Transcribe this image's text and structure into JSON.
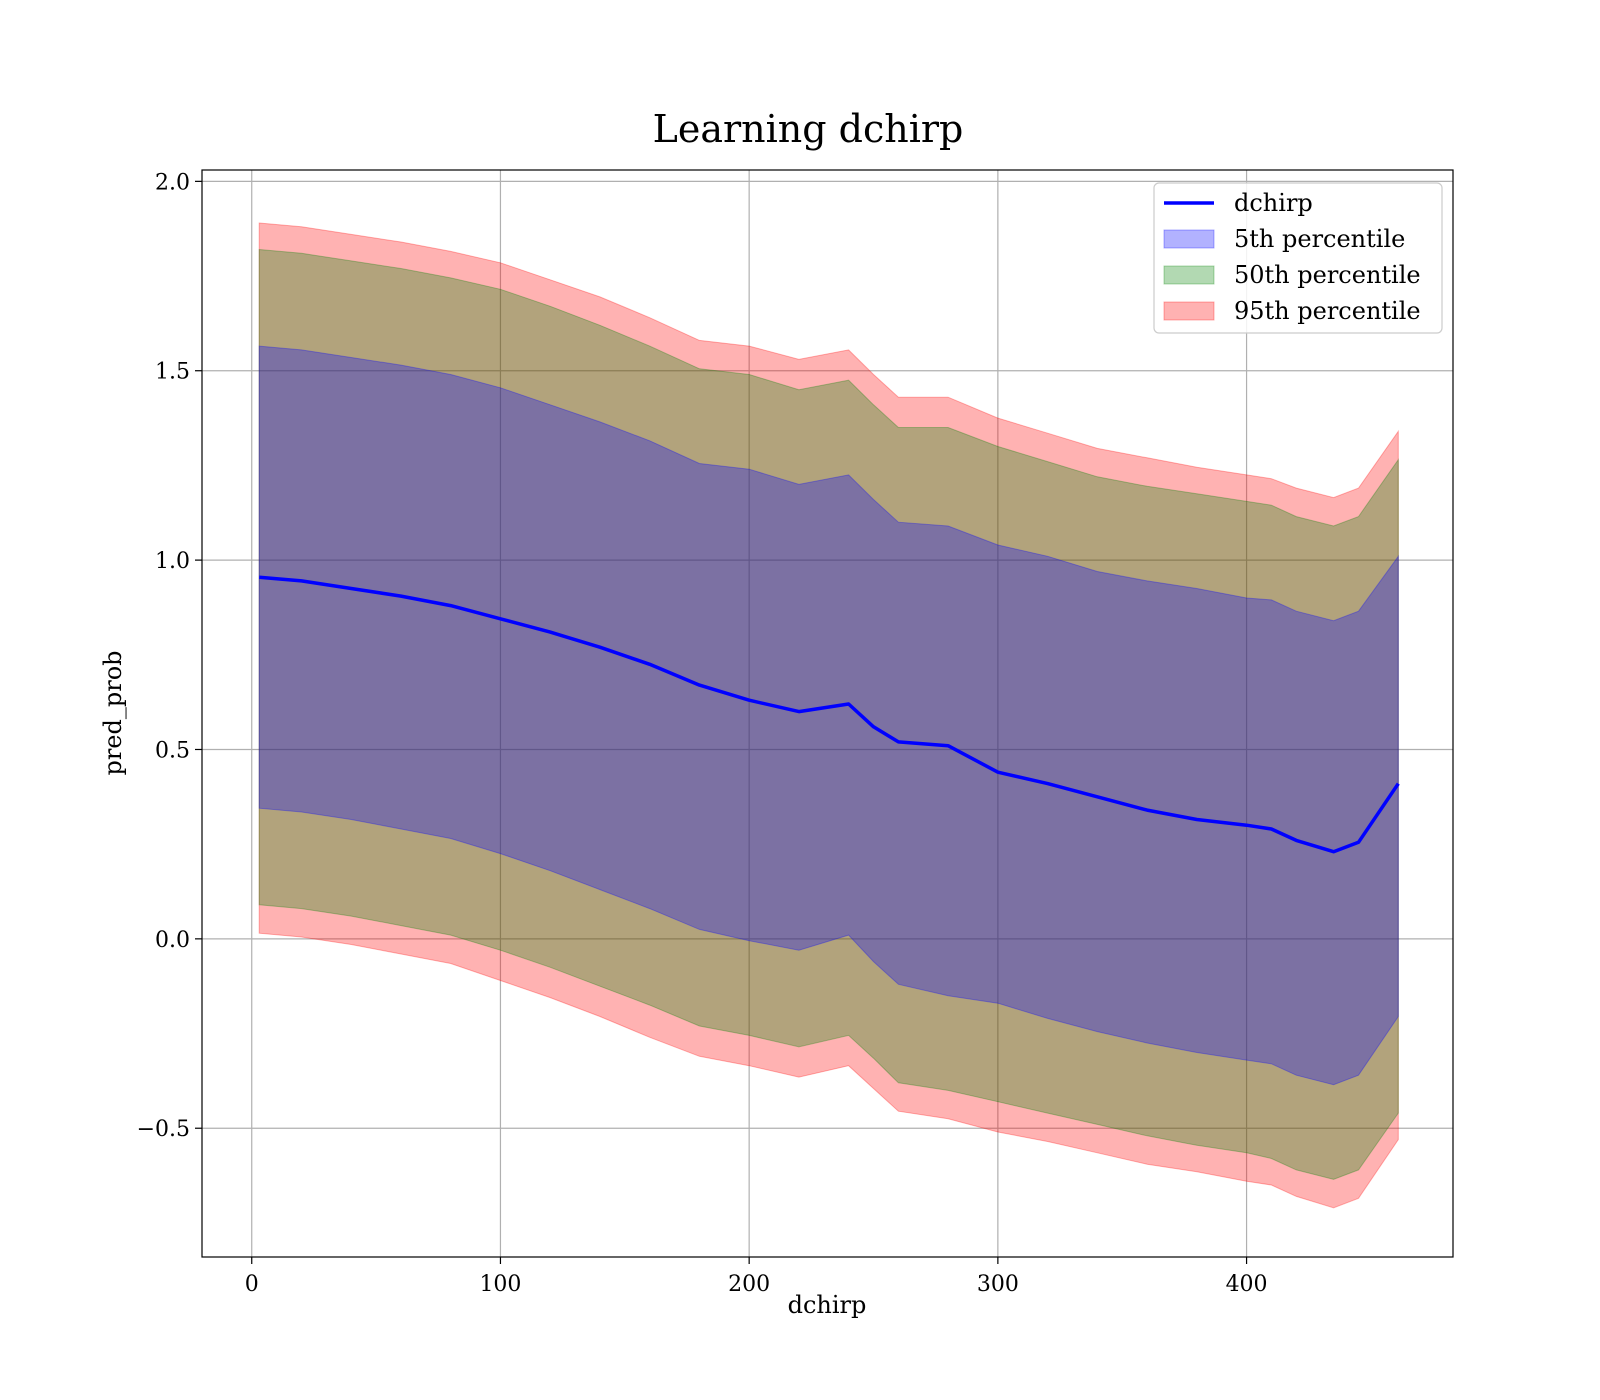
{
  "chart_data": {
    "type": "area",
    "title": "Learning dchirp",
    "xlabel": "dchirp",
    "ylabel": "pred_prob",
    "xlim": [
      -20,
      483
    ],
    "ylim": [
      -0.84,
      2.03
    ],
    "x_ticks": [
      {
        "value": 0,
        "label": "0"
      },
      {
        "value": 100,
        "label": "100"
      },
      {
        "value": 200,
        "label": "200"
      },
      {
        "value": 300,
        "label": "300"
      },
      {
        "value": 400,
        "label": "400"
      }
    ],
    "y_ticks": [
      {
        "value": -0.5,
        "label": "−0.5"
      },
      {
        "value": 0.0,
        "label": "0.0"
      },
      {
        "value": 0.5,
        "label": "0.5"
      },
      {
        "value": 1.0,
        "label": "1.0"
      },
      {
        "value": 1.5,
        "label": "1.5"
      },
      {
        "value": 2.0,
        "label": "2.0"
      }
    ],
    "grid": true,
    "legend_position": "top-right",
    "x": [
      3,
      20,
      40,
      60,
      80,
      100,
      120,
      140,
      160,
      180,
      200,
      220,
      240,
      250,
      260,
      280,
      300,
      320,
      340,
      360,
      380,
      400,
      410,
      420,
      435,
      445,
      461
    ],
    "series": [
      {
        "name": "dchirp",
        "kind": "line",
        "color": "#0000ff",
        "values": [
          0.955,
          0.945,
          0.925,
          0.905,
          0.88,
          0.845,
          0.81,
          0.77,
          0.725,
          0.67,
          0.63,
          0.6,
          0.62,
          0.56,
          0.52,
          0.51,
          0.44,
          0.41,
          0.375,
          0.34,
          0.315,
          0.3,
          0.29,
          0.26,
          0.23,
          0.255,
          0.41
        ]
      },
      {
        "name": "5th percentile",
        "kind": "band",
        "color": "#0000ff",
        "lower": [
          0.345,
          0.335,
          0.315,
          0.29,
          0.265,
          0.225,
          0.18,
          0.13,
          0.08,
          0.025,
          -0.005,
          -0.03,
          0.01,
          -0.06,
          -0.12,
          -0.15,
          -0.17,
          -0.21,
          -0.245,
          -0.275,
          -0.3,
          -0.32,
          -0.33,
          -0.36,
          -0.385,
          -0.36,
          -0.205
        ],
        "upper": [
          1.565,
          1.555,
          1.535,
          1.515,
          1.49,
          1.455,
          1.41,
          1.365,
          1.315,
          1.255,
          1.24,
          1.2,
          1.225,
          1.16,
          1.1,
          1.09,
          1.04,
          1.01,
          0.97,
          0.945,
          0.925,
          0.9,
          0.895,
          0.865,
          0.84,
          0.865,
          1.01
        ]
      },
      {
        "name": "50th percentile",
        "kind": "band",
        "color": "#008000",
        "lower": [
          0.09,
          0.08,
          0.06,
          0.035,
          0.01,
          -0.03,
          -0.075,
          -0.125,
          -0.175,
          -0.23,
          -0.255,
          -0.285,
          -0.255,
          -0.315,
          -0.38,
          -0.4,
          -0.43,
          -0.46,
          -0.49,
          -0.52,
          -0.545,
          -0.565,
          -0.58,
          -0.61,
          -0.635,
          -0.61,
          -0.46
        ],
        "upper": [
          1.82,
          1.81,
          1.79,
          1.77,
          1.745,
          1.715,
          1.67,
          1.62,
          1.565,
          1.505,
          1.49,
          1.45,
          1.475,
          1.41,
          1.35,
          1.35,
          1.3,
          1.26,
          1.22,
          1.195,
          1.175,
          1.155,
          1.145,
          1.115,
          1.09,
          1.115,
          1.265
        ]
      },
      {
        "name": "95th percentile",
        "kind": "band",
        "color": "#ff0000",
        "lower": [
          0.015,
          0.005,
          -0.015,
          -0.04,
          -0.065,
          -0.11,
          -0.155,
          -0.205,
          -0.26,
          -0.31,
          -0.335,
          -0.365,
          -0.335,
          -0.395,
          -0.455,
          -0.475,
          -0.51,
          -0.535,
          -0.565,
          -0.595,
          -0.615,
          -0.64,
          -0.65,
          -0.68,
          -0.71,
          -0.685,
          -0.53
        ],
        "upper": [
          1.89,
          1.88,
          1.86,
          1.84,
          1.815,
          1.785,
          1.74,
          1.695,
          1.64,
          1.58,
          1.565,
          1.53,
          1.555,
          1.49,
          1.43,
          1.43,
          1.375,
          1.335,
          1.295,
          1.27,
          1.245,
          1.225,
          1.215,
          1.19,
          1.165,
          1.19,
          1.34
        ]
      }
    ]
  }
}
